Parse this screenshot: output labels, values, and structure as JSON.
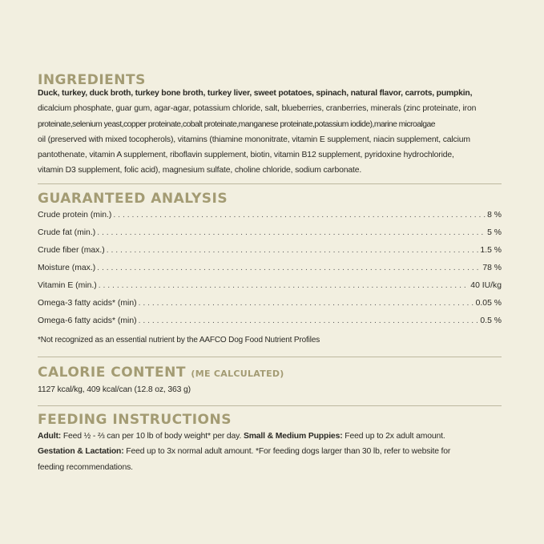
{
  "ingredients": {
    "heading": "Ingredients",
    "lines": [
      "Duck, turkey, duck broth, turkey bone broth, turkey liver, sweet potatoes, spinach, natural flavor, carrots, pumpkin,",
      "dicalcium phosphate, guar gum, agar-agar, potassium chloride, salt, blueberries, cranberries, minerals (zinc proteinate, iron",
      "proteinate,selenium yeast,copper proteinate,cobalt proteinate,manganese proteinate,potassium iodide),marine microalgae",
      "oil (preserved with mixed tocopherols), vitamins (thiamine mononitrate, vitamin E supplement, niacin supplement, calcium",
      "pantothenate, vitamin A supplement, riboflavin supplement, biotin, vitamin B12 supplement, pyridoxine hydrochloride,",
      "vitamin D3 supplement, folic acid), magnesium sulfate, choline chloride, sodium carbonate."
    ]
  },
  "analysis": {
    "heading": "Guaranteed Analysis",
    "rows": [
      {
        "label": "Crude protein (min.)",
        "value": "8 %"
      },
      {
        "label": "Crude fat (min.)",
        "value": "5 %"
      },
      {
        "label": "Crude fiber (max.)",
        "value": "1.5 %"
      },
      {
        "label": "Moisture (max.)",
        "value": "78 %"
      },
      {
        "label": "Vitamin E (min.)",
        "value": "40 IU/kg"
      },
      {
        "label": "Omega-3 fatty acids* (min)",
        "value": "0.05 %"
      },
      {
        "label": "Omega-6 fatty acids* (min)",
        "value": "0.5 %"
      }
    ],
    "note": "*Not recognized as an essential nutrient by the AAFCO Dog Food Nutrient Profiles"
  },
  "calorie": {
    "heading": "Calorie Content",
    "subheading": "(ME calculated)",
    "text": "1127 kcal/kg, 409 kcal/can (12.8 oz, 363 g)"
  },
  "feeding": {
    "heading": "Feeding Instructions",
    "adult_label": "Adult:",
    "adult_text": " Feed ½ - ⅔ can per 10 lb of body weight* per day. ",
    "puppies_label": "Small & Medium Puppies:",
    "puppies_text": " Feed up to 2x adult amount.",
    "gestation_label": "Gestation & Lactation:",
    "gestation_text": " Feed up to 3x normal adult amount. *For feeding dogs larger than 30 lb, refer to website for",
    "last_line": "feeding recommendations."
  }
}
